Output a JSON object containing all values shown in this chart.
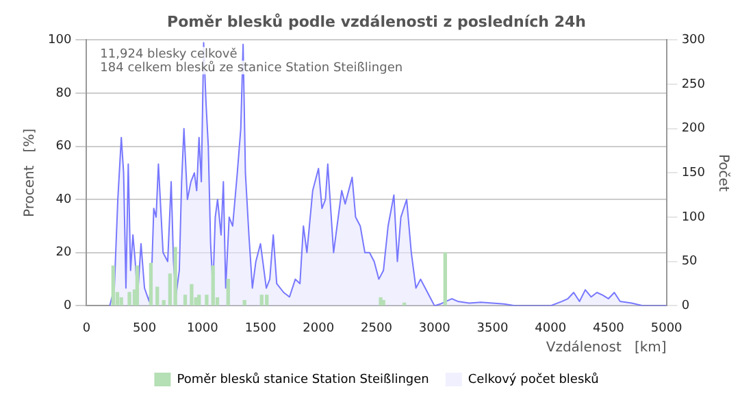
{
  "chart_data": {
    "type": "bar",
    "title": "Poměr blesků podle vzdálenosti z posledních 24h",
    "xlabel": "Vzdálenost   [km]",
    "ylabel": "Procent   [%]",
    "y2label": "Počet",
    "annotations": [
      "11,924 blesky celkově",
      "184 celkem blesků ze stanice Station Steißlingen"
    ],
    "xlim": [
      0,
      5000
    ],
    "xticks": [
      0,
      500,
      1000,
      1500,
      2000,
      2500,
      3000,
      3500,
      4000,
      4500,
      5000
    ],
    "ylim": [
      0,
      100
    ],
    "yticks": [
      0,
      20,
      40,
      60,
      80,
      100
    ],
    "y2lim": [
      0,
      300
    ],
    "y2ticks": [
      0,
      50,
      100,
      150,
      200,
      250,
      300
    ],
    "grid": "y",
    "legend": "bottom",
    "series": [
      {
        "name": "Poměr blesků stanice Station Steißlingen",
        "color": "#b5dfb5",
        "x": [
          230,
          266,
          300,
          370,
          414,
          437,
          555,
          610,
          666,
          720,
          766,
          851,
          906,
          943,
          970,
          1036,
          1091,
          1128,
          1221,
          1362,
          1510,
          1554,
          2536,
          2560,
          2740,
          3092
        ],
        "values": [
          15,
          5,
          3,
          5,
          6,
          15,
          16,
          7,
          2,
          12,
          22,
          4,
          8,
          3,
          4,
          4,
          15,
          3,
          10,
          2,
          4,
          4,
          3,
          2,
          1,
          20
        ]
      },
      {
        "name": "Celkový počet blesků",
        "type": "area",
        "axis": "y2",
        "color": "#7777ff",
        "x": [
          200,
          240,
          270,
          300,
          320,
          340,
          360,
          380,
          400,
          420,
          440,
          470,
          500,
          540,
          560,
          580,
          600,
          620,
          640,
          660,
          700,
          730,
          750,
          770,
          800,
          820,
          840,
          870,
          900,
          930,
          950,
          970,
          990,
          1010,
          1030,
          1050,
          1070,
          1090,
          1110,
          1130,
          1160,
          1180,
          1200,
          1230,
          1260,
          1300,
          1330,
          1350,
          1370,
          1400,
          1430,
          1460,
          1500,
          1520,
          1550,
          1580,
          1610,
          1640,
          1700,
          1750,
          1800,
          1840,
          1870,
          1900,
          1950,
          2000,
          2030,
          2060,
          2080,
          2100,
          2130,
          2170,
          2200,
          2230,
          2260,
          2290,
          2320,
          2360,
          2400,
          2440,
          2480,
          2520,
          2560,
          2600,
          2650,
          2680,
          2710,
          2760,
          2800,
          2840,
          2880,
          2920,
          2960,
          3000,
          3050,
          3100,
          3150,
          3200,
          3300,
          3400,
          3500,
          3600,
          3700,
          4000,
          4100,
          4150,
          4200,
          4250,
          4300,
          4350,
          4400,
          4450,
          4500,
          4550,
          4600,
          4700,
          4800,
          5000
        ],
        "values": [
          0,
          20,
          120,
          190,
          150,
          20,
          160,
          40,
          80,
          50,
          10,
          70,
          20,
          5,
          30,
          110,
          100,
          160,
          110,
          60,
          50,
          140,
          50,
          10,
          40,
          140,
          200,
          120,
          140,
          150,
          130,
          190,
          140,
          297,
          230,
          180,
          70,
          20,
          100,
          120,
          80,
          140,
          20,
          100,
          90,
          150,
          200,
          295,
          150,
          80,
          20,
          50,
          70,
          50,
          20,
          30,
          80,
          25,
          15,
          10,
          30,
          25,
          90,
          60,
          130,
          155,
          110,
          120,
          160,
          120,
          60,
          100,
          130,
          115,
          130,
          145,
          100,
          90,
          60,
          60,
          50,
          30,
          40,
          90,
          125,
          50,
          100,
          120,
          60,
          20,
          30,
          20,
          10,
          0,
          2,
          5,
          8,
          5,
          3,
          4,
          3,
          2,
          0,
          0,
          5,
          8,
          15,
          5,
          18,
          10,
          15,
          12,
          8,
          15,
          5,
          3,
          0,
          0
        ]
      }
    ]
  }
}
